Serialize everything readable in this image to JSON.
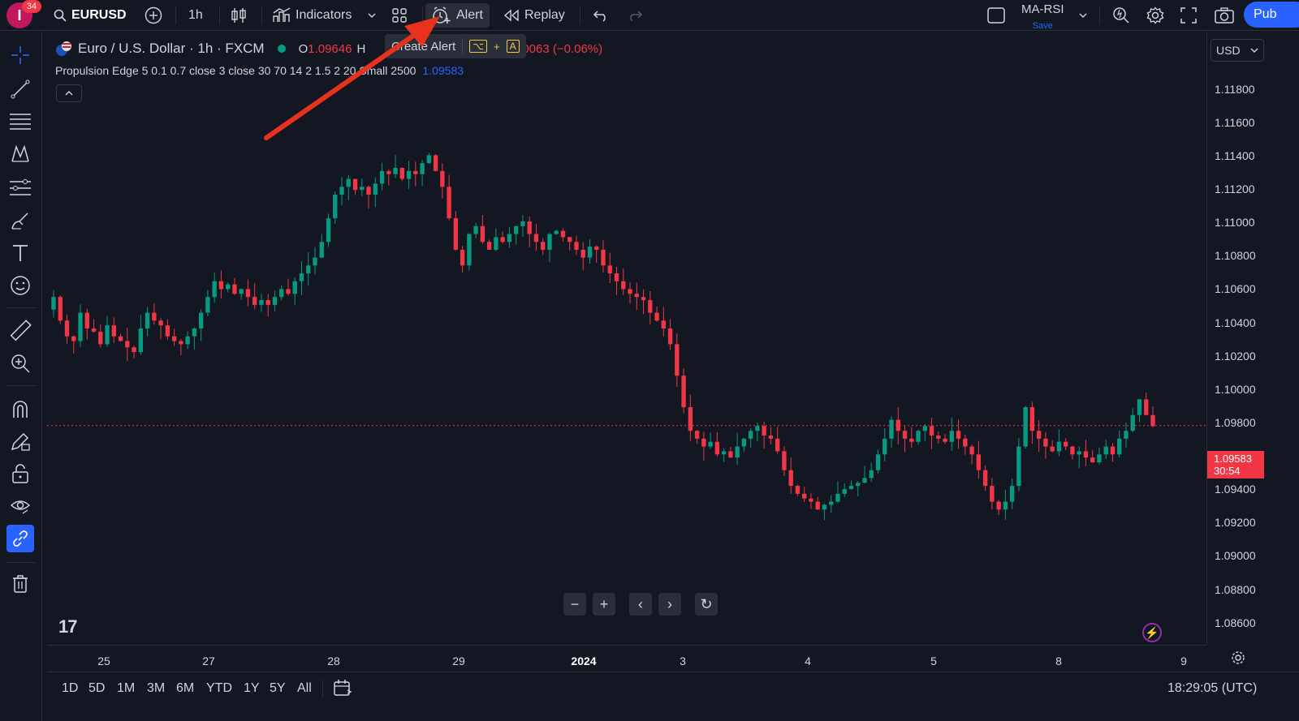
{
  "topbar": {
    "notif_count": "34",
    "avatar_letter": "I",
    "symbol": "EURUSD",
    "interval": "1h",
    "indicators_label": "Indicators",
    "alert_label": "Alert",
    "replay_label": "Replay",
    "layout_name": "MA-RSI",
    "layout_save": "Save",
    "publish_label": "Pub"
  },
  "tooltip": {
    "text": "Create Alert",
    "shortcut_key1": "⌥",
    "shortcut_plus": "+",
    "shortcut_key2": "A"
  },
  "legend": {
    "title": "Euro / U.S. Dollar · 1h · FXCM",
    "o_label": "O",
    "o_value": "1.09646",
    "h_label": "H",
    "close_fragment": "9583",
    "change": "−0.00063 (−0.06%)",
    "indicator_text": "Propulsion Edge 5 0.1 0.7 close 3 close 30 70 14 2 1.5 2 20 Small 2500",
    "indicator_value": "1.09583"
  },
  "price_axis": {
    "currency": "USD",
    "labels": [
      "1.11800",
      "1.11600",
      "1.11400",
      "1.11200",
      "1.11000",
      "1.10800",
      "1.10600",
      "1.10400",
      "1.10200",
      "1.10000",
      "1.09800",
      "1.09400",
      "1.09200",
      "1.09000",
      "1.08800",
      "1.08600"
    ],
    "current_price": "1.09583",
    "countdown": "30:54"
  },
  "time_axis": {
    "labels": [
      "25",
      "27",
      "28",
      "29",
      "2024",
      "3",
      "4",
      "5",
      "8",
      "9"
    ]
  },
  "bottom": {
    "ranges": [
      "1D",
      "5D",
      "1M",
      "3M",
      "6M",
      "YTD",
      "1Y",
      "5Y",
      "All"
    ],
    "clock": "18:29:05 (UTC)"
  },
  "nav": {
    "zoom_out": "−",
    "zoom_in": "+",
    "left": "‹",
    "right": "›",
    "reset": "↻"
  },
  "logo": "17",
  "colors": {
    "up": "#089981",
    "down": "#f23645",
    "accent": "#2962ff",
    "arrow": "#e8321e",
    "background": "#131722"
  },
  "chart_data": {
    "type": "candlestick",
    "ylim": [
      1.085,
      1.119
    ],
    "current_price": 1.09583,
    "closes": [
      1.104,
      1.1025,
      1.1015,
      1.1012,
      1.103,
      1.102,
      1.1018,
      1.101,
      1.1022,
      1.1015,
      1.1012,
      1.1008,
      1.1005,
      1.102,
      1.103,
      1.1025,
      1.1022,
      1.1015,
      1.1012,
      1.101,
      1.1015,
      1.102,
      1.103,
      1.104,
      1.105,
      1.1045,
      1.1048,
      1.1042,
      1.1045,
      1.104,
      1.1035,
      1.1038,
      1.1035,
      1.104,
      1.1045,
      1.1042,
      1.105,
      1.1055,
      1.106,
      1.1065,
      1.1075,
      1.109,
      1.1105,
      1.111,
      1.1115,
      1.1108,
      1.111,
      1.1105,
      1.1112,
      1.112,
      1.1118,
      1.1122,
      1.1115,
      1.112,
      1.1118,
      1.1125,
      1.113,
      1.112,
      1.111,
      1.109,
      1.107,
      1.106,
      1.108,
      1.1085,
      1.1075,
      1.107,
      1.1078,
      1.1075,
      1.108,
      1.1085,
      1.1088,
      1.108,
      1.1075,
      1.107,
      1.108,
      1.1082,
      1.1078,
      1.1075,
      1.107,
      1.1065,
      1.1072,
      1.107,
      1.106,
      1.1055,
      1.105,
      1.1045,
      1.1042,
      1.104,
      1.1038,
      1.103,
      1.1025,
      1.102,
      1.101,
      1.099,
      1.097,
      1.0955,
      1.095,
      1.0945,
      1.0948,
      1.094,
      1.0942,
      1.0938,
      1.0945,
      1.095,
      1.0955,
      1.0958,
      1.0952,
      1.095,
      1.0942,
      1.093,
      1.092,
      1.0915,
      1.0912,
      1.091,
      1.0905,
      1.0908,
      1.091,
      1.0915,
      1.0918,
      1.092,
      1.0922,
      1.0925,
      1.093,
      1.094,
      1.095,
      1.0962,
      1.0955,
      1.095,
      1.0948,
      1.0955,
      1.0958,
      1.0952,
      1.095,
      1.0948,
      1.0955,
      1.095,
      1.0945,
      1.094,
      1.093,
      1.092,
      1.091,
      1.0905,
      1.091,
      1.092,
      1.0945,
      1.097,
      1.0955,
      1.095,
      1.0945,
      1.0942,
      1.0948,
      1.0945,
      1.094,
      1.0942,
      1.0938,
      1.0935,
      1.094,
      1.0945,
      1.094,
      1.095,
      1.0955,
      1.0965,
      1.0975,
      1.0965,
      1.0958
    ]
  }
}
